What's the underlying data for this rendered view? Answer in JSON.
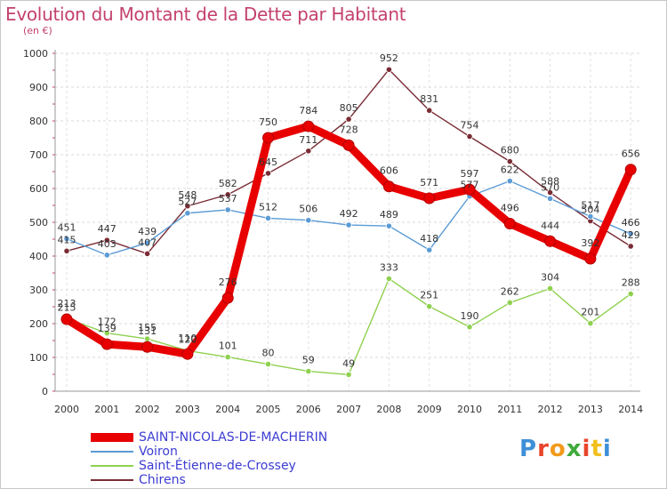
{
  "title": "Evolution du Montant de la Dette par Habitant",
  "unit": "(en €)",
  "brand": "Proxiti",
  "chart_data": {
    "type": "line",
    "x": [
      "2000",
      "2001",
      "2002",
      "2003",
      "2004",
      "2005",
      "2006",
      "2007",
      "2008",
      "2009",
      "2010",
      "2011",
      "2012",
      "2013",
      "2014"
    ],
    "ylim": [
      0,
      1000
    ],
    "yticks": [
      0,
      100,
      200,
      300,
      400,
      500,
      600,
      700,
      800,
      900,
      1000
    ],
    "grid": true,
    "legend_position": "bottom-left",
    "series": [
      {
        "name": "SAINT-NICOLAS-DE-MACHERIN",
        "color": "#e80000",
        "values": [
          213,
          139,
          131,
          110,
          276,
          750,
          784,
          728,
          606,
          571,
          597,
          496,
          444,
          392,
          656
        ]
      },
      {
        "name": "Voiron",
        "color": "#5b9bd5",
        "values": [
          451,
          403,
          439,
          527,
          537,
          512,
          506,
          492,
          489,
          418,
          577,
          622,
          570,
          517,
          466
        ]
      },
      {
        "name": "Saint-Étienne-de-Crossey",
        "color": "#8fd14f",
        "values": [
          215,
          172,
          155,
          120,
          101,
          80,
          59,
          49,
          333,
          251,
          190,
          262,
          304,
          201,
          288
        ]
      },
      {
        "name": "Chirens",
        "color": "#7a2c35",
        "values": [
          415,
          447,
          407,
          548,
          582,
          645,
          711,
          805,
          952,
          831,
          754,
          680,
          588,
          504,
          429
        ]
      }
    ]
  }
}
